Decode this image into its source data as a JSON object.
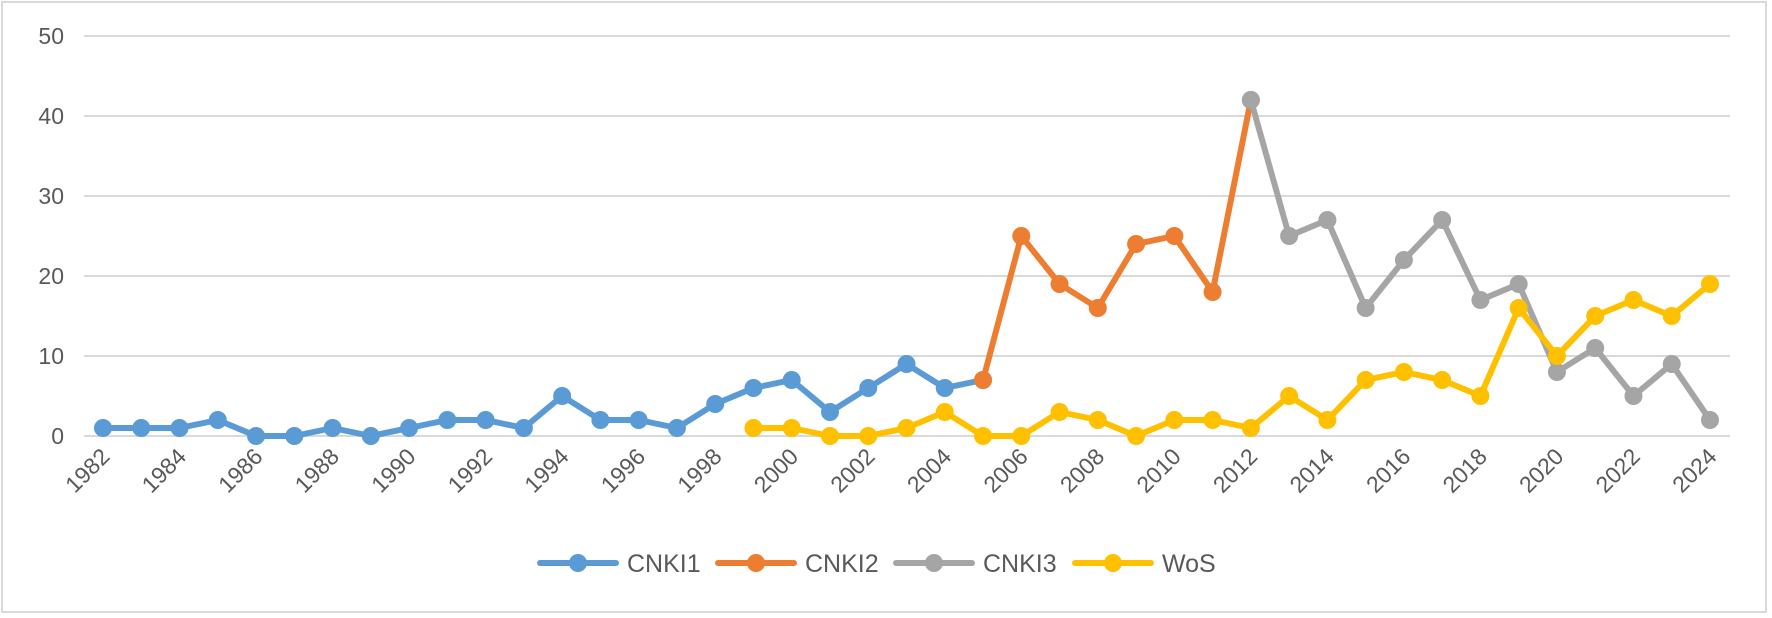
{
  "chart_data": {
    "type": "line",
    "title": "",
    "xlabel": "",
    "ylabel": "",
    "ylim": [
      0,
      50
    ],
    "yticks": [
      0,
      10,
      20,
      30,
      40,
      50
    ],
    "x": [
      1982,
      1983,
      1984,
      1985,
      1986,
      1987,
      1988,
      1989,
      1990,
      1991,
      1992,
      1993,
      1994,
      1995,
      1996,
      1997,
      1998,
      1999,
      2000,
      2001,
      2002,
      2003,
      2004,
      2005,
      2006,
      2007,
      2008,
      2009,
      2010,
      2011,
      2012,
      2013,
      2014,
      2015,
      2016,
      2017,
      2018,
      2019,
      2020,
      2021,
      2022,
      2023,
      2024
    ],
    "xtick_labels": [
      "1982",
      "1984",
      "1986",
      "1988",
      "1990",
      "1992",
      "1994",
      "1996",
      "1998",
      "2000",
      "2002",
      "2004",
      "2006",
      "2008",
      "2010",
      "2012",
      "2014",
      "2016",
      "2018",
      "2020",
      "2022",
      "2024"
    ],
    "grid": true,
    "legend_position": "bottom",
    "series": [
      {
        "name": "CNKI1",
        "color": "#5b9bd5",
        "x": [
          1982,
          1983,
          1984,
          1985,
          1986,
          1987,
          1988,
          1989,
          1990,
          1991,
          1992,
          1993,
          1994,
          1995,
          1996,
          1997,
          1998,
          1999,
          2000,
          2001,
          2002,
          2003,
          2004,
          2005
        ],
        "values": [
          1,
          1,
          1,
          2,
          0,
          0,
          1,
          0,
          1,
          2,
          2,
          1,
          5,
          2,
          2,
          1,
          4,
          6,
          7,
          3,
          6,
          9,
          6,
          7
        ]
      },
      {
        "name": "CNKI2",
        "color": "#ed7d31",
        "x": [
          2005,
          2006,
          2007,
          2008,
          2009,
          2010,
          2011,
          2012
        ],
        "values": [
          7,
          25,
          19,
          16,
          24,
          25,
          18,
          42
        ]
      },
      {
        "name": "CNKI3",
        "color": "#a5a5a5",
        "x": [
          2012,
          2013,
          2014,
          2015,
          2016,
          2017,
          2018,
          2019,
          2020,
          2021,
          2022,
          2023,
          2024
        ],
        "values": [
          42,
          25,
          27,
          16,
          22,
          27,
          17,
          19,
          8,
          11,
          5,
          9,
          2
        ]
      },
      {
        "name": "WoS",
        "color": "#ffc000",
        "x": [
          1999,
          2000,
          2001,
          2002,
          2003,
          2004,
          2005,
          2006,
          2007,
          2008,
          2009,
          2010,
          2011,
          2012,
          2013,
          2014,
          2015,
          2016,
          2017,
          2018,
          2019,
          2020,
          2021,
          2022,
          2023,
          2024
        ],
        "values": [
          1,
          1,
          0,
          0,
          1,
          3,
          0,
          0,
          3,
          2,
          0,
          2,
          2,
          1,
          5,
          2,
          7,
          8,
          7,
          5,
          16,
          10,
          15,
          17,
          15,
          19
        ]
      }
    ]
  }
}
